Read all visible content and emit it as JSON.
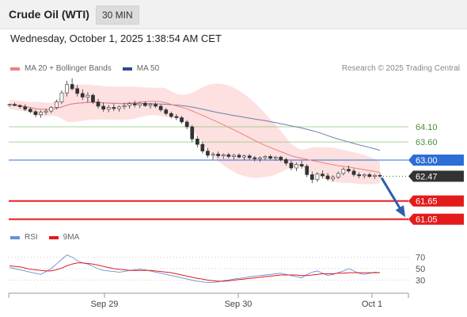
{
  "header": {
    "title": "Crude Oil (WTI)",
    "timeframe": "30 MIN"
  },
  "datetime": "Wednesday, October 1, 2025 1:38:54 AM CET",
  "legend": {
    "items": [
      {
        "label": "MA 20 + Bollinger Bands",
        "color": "#f08080"
      },
      {
        "label": "MA 50",
        "color": "#2e4a8c"
      }
    ],
    "credit": "Research © 2025 Trading Central"
  },
  "rsi_legend": {
    "items": [
      {
        "label": "RSI",
        "color": "#6a8fd8"
      },
      {
        "label": "9MA",
        "color": "#e31b1b"
      }
    ]
  },
  "colors": {
    "candle_up": "#ffffff",
    "candle_down": "#333333",
    "bollinger_fill": "#fde0e0",
    "ma20": "#f08080",
    "ma50": "#6b7fae",
    "resistance_green": "#8cc47a",
    "pivot_blue": "#2b6fd6",
    "support_red": "#e31b1b",
    "current_price_bg": "#333333",
    "arrow": "#2e5fa8"
  },
  "chart_data": [
    {
      "type": "candlestick",
      "x_labels": [
        "Sep 29",
        "Sep 30",
        "Oct 1"
      ],
      "ylim": [
        60.7,
        65.8
      ],
      "levels": [
        {
          "value": 64.1,
          "label": "64.10",
          "style": "resistance"
        },
        {
          "value": 63.6,
          "label": "63.60",
          "style": "resistance"
        },
        {
          "value": 63.0,
          "label": "63.00",
          "style": "pivot"
        },
        {
          "value": 62.47,
          "label": "62.47",
          "style": "current"
        },
        {
          "value": 61.65,
          "label": "61.65",
          "style": "support"
        },
        {
          "value": 61.05,
          "label": "61.05",
          "style": "support"
        }
      ],
      "candles": [
        [
          64.82,
          64.86,
          64.75,
          64.84
        ],
        [
          64.84,
          64.9,
          64.78,
          64.8
        ],
        [
          64.8,
          64.85,
          64.7,
          64.76
        ],
        [
          64.76,
          64.84,
          64.62,
          64.68
        ],
        [
          64.68,
          64.74,
          64.55,
          64.6
        ],
        [
          64.6,
          64.66,
          64.42,
          64.5
        ],
        [
          64.5,
          64.64,
          64.4,
          64.58
        ],
        [
          64.58,
          64.7,
          64.5,
          64.62
        ],
        [
          64.62,
          64.78,
          64.55,
          64.74
        ],
        [
          64.74,
          65.0,
          64.68,
          64.92
        ],
        [
          64.92,
          65.3,
          64.85,
          65.22
        ],
        [
          65.22,
          65.62,
          65.1,
          65.5
        ],
        [
          65.5,
          65.7,
          65.3,
          65.36
        ],
        [
          65.36,
          65.48,
          65.1,
          65.2
        ],
        [
          65.2,
          65.34,
          64.98,
          65.08
        ],
        [
          65.08,
          65.24,
          64.9,
          65.14
        ],
        [
          65.14,
          65.2,
          64.85,
          64.92
        ],
        [
          64.92,
          65.02,
          64.7,
          64.78
        ],
        [
          64.78,
          64.9,
          64.6,
          64.68
        ],
        [
          64.68,
          64.82,
          64.58,
          64.74
        ],
        [
          64.74,
          64.86,
          64.62,
          64.7
        ],
        [
          64.7,
          64.8,
          64.6,
          64.76
        ],
        [
          64.76,
          64.88,
          64.68,
          64.8
        ],
        [
          64.8,
          64.92,
          64.7,
          64.86
        ],
        [
          64.86,
          64.96,
          64.74,
          64.82
        ],
        [
          64.82,
          64.92,
          64.72,
          64.88
        ],
        [
          64.88,
          64.94,
          64.76,
          64.8
        ],
        [
          64.8,
          64.88,
          64.7,
          64.84
        ],
        [
          64.84,
          64.9,
          64.72,
          64.78
        ],
        [
          64.78,
          64.84,
          64.6,
          64.66
        ],
        [
          64.66,
          64.72,
          64.48,
          64.54
        ],
        [
          64.54,
          64.6,
          64.38,
          64.44
        ],
        [
          64.44,
          64.52,
          64.32,
          64.4
        ],
        [
          64.4,
          64.46,
          64.2,
          64.26
        ],
        [
          64.26,
          64.32,
          64.02,
          64.1
        ],
        [
          64.1,
          64.16,
          63.6,
          63.7
        ],
        [
          63.7,
          63.8,
          63.42,
          63.52
        ],
        [
          63.52,
          63.6,
          63.22,
          63.3
        ],
        [
          63.3,
          63.4,
          63.08,
          63.16
        ],
        [
          63.16,
          63.26,
          63.02,
          63.2
        ],
        [
          63.2,
          63.28,
          63.06,
          63.14
        ],
        [
          63.14,
          63.22,
          63.04,
          63.18
        ],
        [
          63.18,
          63.24,
          63.06,
          63.12
        ],
        [
          63.12,
          63.2,
          63.02,
          63.16
        ],
        [
          63.16,
          63.22,
          63.06,
          63.1
        ],
        [
          63.1,
          63.18,
          63.0,
          63.14
        ],
        [
          63.14,
          63.2,
          63.02,
          63.08
        ],
        [
          63.08,
          63.14,
          62.96,
          63.04
        ],
        [
          63.04,
          63.12,
          62.94,
          63.08
        ],
        [
          63.08,
          63.16,
          63.0,
          63.12
        ],
        [
          63.12,
          63.18,
          63.02,
          63.06
        ],
        [
          63.06,
          63.14,
          62.98,
          63.1
        ],
        [
          63.1,
          63.14,
          62.96,
          63.02
        ],
        [
          63.02,
          63.08,
          62.82,
          62.9
        ],
        [
          62.9,
          62.98,
          62.66,
          62.74
        ],
        [
          62.74,
          62.92,
          62.64,
          62.86
        ],
        [
          62.86,
          62.98,
          62.72,
          62.8
        ],
        [
          62.8,
          62.86,
          62.44,
          62.52
        ],
        [
          62.52,
          62.62,
          62.24,
          62.36
        ],
        [
          62.36,
          62.6,
          62.28,
          62.54
        ],
        [
          62.54,
          62.66,
          62.4,
          62.48
        ],
        [
          62.48,
          62.58,
          62.32,
          62.38
        ],
        [
          62.38,
          62.5,
          62.3,
          62.44
        ],
        [
          62.44,
          62.62,
          62.38,
          62.56
        ],
        [
          62.56,
          62.76,
          62.5,
          62.7
        ],
        [
          62.7,
          62.82,
          62.58,
          62.64
        ],
        [
          62.64,
          62.72,
          62.46,
          62.52
        ],
        [
          62.52,
          62.6,
          62.4,
          62.48
        ],
        [
          62.48,
          62.56,
          62.4,
          62.52
        ],
        [
          62.52,
          62.58,
          62.42,
          62.46
        ],
        [
          62.46,
          62.54,
          62.38,
          62.5
        ],
        [
          62.5,
          62.56,
          62.42,
          62.47
        ]
      ]
    },
    {
      "type": "line",
      "name": "RSI",
      "y_ticks": [
        70,
        50,
        30
      ],
      "ylim": [
        10,
        90
      ],
      "series": [
        {
          "name": "RSI",
          "values": [
            52,
            50,
            48,
            46,
            44,
            42,
            40,
            45,
            50,
            58,
            66,
            74,
            70,
            64,
            60,
            58,
            54,
            50,
            47,
            46,
            45,
            44,
            45,
            47,
            48,
            49,
            48,
            46,
            44,
            42,
            40,
            38,
            36,
            34,
            32,
            30,
            28,
            27,
            26,
            26,
            27,
            29,
            30,
            32,
            33,
            34,
            36,
            37,
            38,
            39,
            40,
            41,
            42,
            40,
            38,
            36,
            34,
            40,
            44,
            46,
            42,
            38,
            40,
            43,
            46,
            50,
            46,
            42,
            40,
            42,
            44,
            43
          ]
        },
        {
          "name": "9MA",
          "values": [
            55,
            54,
            53,
            51,
            49,
            48,
            47,
            46,
            46,
            48,
            51,
            55,
            58,
            60,
            60,
            59,
            58,
            56,
            54,
            52,
            50,
            49,
            48,
            47,
            47,
            47,
            47,
            47,
            46,
            45,
            44,
            43,
            41,
            39,
            37,
            35,
            33,
            32,
            30,
            29,
            28,
            28,
            29,
            30,
            31,
            32,
            33,
            34,
            35,
            36,
            37,
            38,
            39,
            39,
            39,
            39,
            38,
            38,
            39,
            40,
            41,
            41,
            41,
            42,
            42,
            43,
            43,
            43,
            43,
            43,
            43,
            43
          ]
        }
      ]
    }
  ]
}
